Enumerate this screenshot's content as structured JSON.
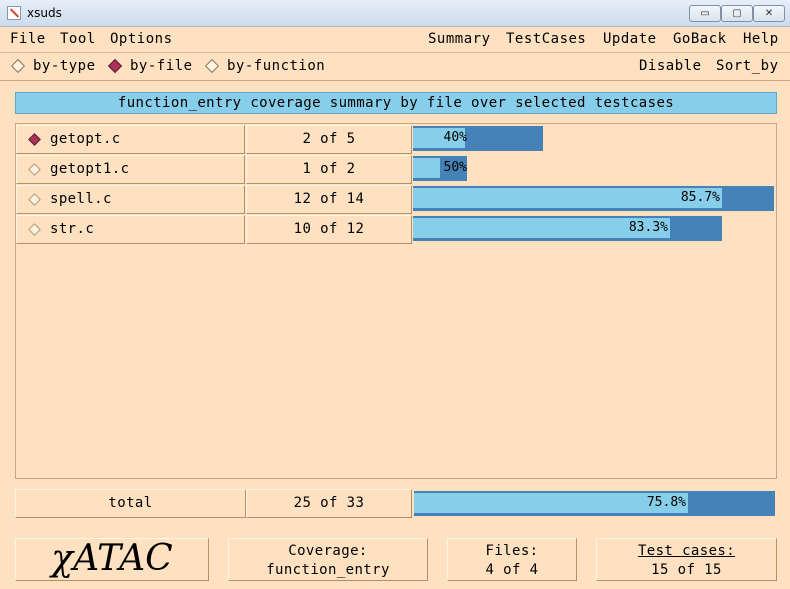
{
  "window": {
    "title": "xsuds",
    "minimize_glyph": "▭",
    "maximize_glyph": "▢",
    "close_glyph": "✕"
  },
  "menubar": {
    "left": [
      "File",
      "Tool",
      "Options"
    ],
    "right": [
      "Summary",
      "TestCases",
      "Update",
      "GoBack",
      "Help"
    ]
  },
  "modebar": {
    "options": [
      {
        "label": "by-type",
        "selected": false
      },
      {
        "label": "by-file",
        "selected": true
      },
      {
        "label": "by-function",
        "selected": false
      }
    ],
    "actions": [
      "Disable",
      "Sort_by"
    ]
  },
  "summary": {
    "title": "function_entry coverage summary by file over selected testcases"
  },
  "rows": [
    {
      "name": "getopt.c",
      "count": "2 of 5",
      "percent_label": "40%",
      "fraction": 0.4,
      "track_fraction": 0.36,
      "selected": true
    },
    {
      "name": "getopt1.c",
      "count": "1 of 2",
      "percent_label": "50%",
      "fraction": 0.5,
      "track_fraction": 0.15,
      "selected": false
    },
    {
      "name": "spell.c",
      "count": "12 of 14",
      "percent_label": "85.7%",
      "fraction": 0.857,
      "track_fraction": 1.0,
      "selected": false
    },
    {
      "name": "str.c",
      "count": "10 of 12",
      "percent_label": "83.3%",
      "fraction": 0.833,
      "track_fraction": 0.857,
      "selected": false
    }
  ],
  "total": {
    "label": "total",
    "count": "25 of 33",
    "percent_label": "75.8%",
    "fraction": 0.758
  },
  "footer": {
    "logo": "χATAC",
    "coverage_label": "Coverage:",
    "coverage_value": "function_entry",
    "files_label": "Files:",
    "files_value": "4 of 4",
    "testcases_label": "Test cases:",
    "testcases_value": "15 of 15"
  },
  "colors": {
    "background": "#fde1c0",
    "bar_fill": "#87ceeb",
    "bar_track": "#4482b8",
    "selected_marker": "#a8325a"
  }
}
